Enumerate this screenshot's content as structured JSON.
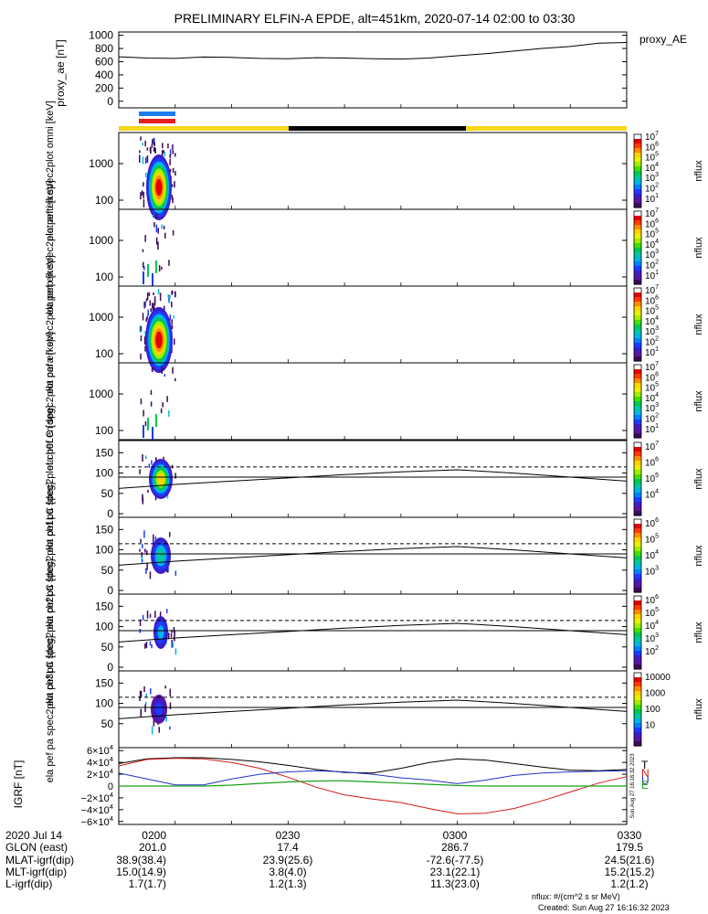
{
  "title": "PRELIMINARY ELFIN-A EPDE, alt=451km, 2020-07-14 02:00 to 03:30",
  "colors": {
    "bar_blue": "#1e7cf0",
    "bar_red": "#e4201b",
    "bar_yellow": "#f7d718",
    "bar_black": "#000000",
    "grf_total": "#000000",
    "grf_north": "#d21a16",
    "grf_up": "#1f33c8",
    "grf_east": "#18a018"
  },
  "panels": {
    "proxy_ae": {
      "ylabel": "proxy_ae [nT]",
      "legend": "proxy_AE",
      "yticks": [
        "1000",
        "800",
        "600",
        "400",
        "200",
        "0"
      ]
    },
    "omni": {
      "ylabel": "ela pef en spec2plot omni [keV]",
      "yticks": [
        "1000",
        "100"
      ],
      "cbar_ticks": [
        "10^7",
        "10^6",
        "10^5",
        "10^4",
        "10^3",
        "10^2",
        "10^1"
      ],
      "cbar_label": "nflux"
    },
    "anti": {
      "ylabel": "ela pef en spec2plot anti [keV]",
      "yticks": [
        "1000",
        "100"
      ],
      "cbar_ticks": [
        "10^7",
        "10^6",
        "10^5",
        "10^4",
        "10^3",
        "10^2",
        "10^1"
      ],
      "cbar_label": "nflux"
    },
    "perp": {
      "ylabel": "ela pef en spec2plot perp [keV]",
      "yticks": [
        "1000",
        "100"
      ],
      "cbar_ticks": [
        "10^7",
        "10^6",
        "10^5",
        "10^4",
        "10^3",
        "10^2",
        "10^1"
      ],
      "cbar_label": "nflux"
    },
    "para": {
      "ylabel": "ela pef en spec2plot para [keV]",
      "yticks": [
        "1000",
        "100"
      ],
      "cbar_ticks": [
        "10^7",
        "10^6",
        "10^5",
        "10^4",
        "10^3",
        "10^2",
        "10^1"
      ],
      "cbar_label": "nflux"
    },
    "ch0LC": {
      "ylabel": "ela pef pa spec2plot ch0LC [deg]",
      "yticks": [
        "150",
        "100",
        "50",
        "0"
      ],
      "cbar_ticks": [
        "10^7",
        "10^6",
        "10^5",
        "10^4"
      ],
      "cbar_label": "nflux"
    },
    "ch1LC": {
      "ylabel": "ela pef pa spec2plot ch1LC [deg]",
      "yticks": [
        "150",
        "100",
        "50",
        "0"
      ],
      "cbar_ticks": [
        "10^6",
        "10^5",
        "10^4",
        "10^3"
      ],
      "cbar_label": "nflux"
    },
    "ch2LC": {
      "ylabel": "ela pef pa spec2plot ch2LC [deg]",
      "yticks": [
        "150",
        "100",
        "50",
        "0"
      ],
      "cbar_ticks": [
        "10^6",
        "10^5",
        "10^4",
        "10^3",
        "10^2"
      ],
      "cbar_label": "nflux"
    },
    "ch3LC": {
      "ylabel": "ela pef pa spec2plot ch3LC [deg]",
      "yticks": [
        "150",
        "100",
        "50"
      ],
      "cbar_ticks": [
        "10000",
        "1000",
        "100",
        "10"
      ],
      "cbar_label": "nflux"
    },
    "igrf": {
      "ylabel": "IGRF [nT]",
      "yticks": [
        "6×10^4",
        "4×10^4",
        "2×10^4",
        "0",
        "−2×10^4",
        "−4×10^4",
        "−6×10^4"
      ],
      "legend": [
        "T",
        "N",
        "U",
        "E"
      ],
      "side_stamp": "Sun Aug 27 16:16:32 2023"
    }
  },
  "chart_data": [
    {
      "type": "line",
      "title": "PRELIMINARY ELFIN-A EPDE, alt=451km, 2020-07-14 02:00 to 03:30",
      "ylabel": "proxy_ae [nT]",
      "ylim": [
        -100,
        1050
      ],
      "x": [
        "02:00",
        "02:05",
        "02:10",
        "02:15",
        "02:20",
        "02:25",
        "02:30",
        "02:35",
        "02:40",
        "02:45",
        "02:50",
        "02:55",
        "03:00",
        "03:05",
        "03:10",
        "03:15",
        "03:20",
        "03:25",
        "03:30"
      ],
      "series": [
        {
          "name": "proxy_AE",
          "values": [
            675,
            655,
            650,
            670,
            665,
            650,
            645,
            660,
            655,
            645,
            640,
            655,
            690,
            720,
            760,
            800,
            830,
            880,
            890
          ]
        }
      ]
    },
    {
      "type": "heatmap",
      "ylabel": "ela pef pa spec2plot ch0LC [deg]",
      "ylim": [
        0,
        180
      ],
      "reference_lines": {
        "x": [
          "02:00",
          "02:10",
          "02:20",
          "02:30",
          "02:40",
          "02:50",
          "03:00",
          "03:10",
          "03:20",
          "03:30"
        ],
        "loss_cone": [
          62,
          72,
          80,
          88,
          96,
          103,
          108,
          100,
          90,
          80
        ],
        "antiloss_cone": [
          115,
          115,
          115,
          115,
          115,
          115,
          115,
          115,
          115,
          115
        ],
        "ninety": 90
      }
    },
    {
      "type": "line",
      "ylabel": "IGRF [nT]",
      "ylim": [
        -65000,
        65000
      ],
      "x": [
        "02:00",
        "02:05",
        "02:10",
        "02:15",
        "02:20",
        "02:25",
        "02:30",
        "02:35",
        "02:40",
        "02:45",
        "02:50",
        "02:55",
        "03:00",
        "03:05",
        "03:10",
        "03:15",
        "03:20",
        "03:25",
        "03:30"
      ],
      "series": [
        {
          "name": "T",
          "values": [
            38000,
            46000,
            48000,
            48000,
            45000,
            41000,
            35000,
            28000,
            23000,
            22000,
            30000,
            40000,
            46000,
            44000,
            38000,
            32000,
            27000,
            26000,
            28000
          ]
        },
        {
          "name": "N",
          "values": [
            34000,
            45000,
            47000,
            46000,
            40000,
            30000,
            15000,
            -2000,
            -15000,
            -22000,
            -28000,
            -38000,
            -47000,
            -46000,
            -38000,
            -25000,
            -10000,
            5000,
            16000
          ]
        },
        {
          "name": "U",
          "values": [
            22000,
            12000,
            2000,
            2000,
            12000,
            20000,
            24000,
            26000,
            24000,
            20000,
            14000,
            10000,
            4000,
            10000,
            18000,
            22000,
            24000,
            25000,
            26000
          ]
        },
        {
          "name": "E",
          "values": [
            0,
            0,
            0,
            0,
            1500,
            4500,
            7000,
            8500,
            9000,
            7000,
            5000,
            3000,
            1000,
            0,
            0,
            0,
            0,
            0,
            0
          ]
        }
      ]
    }
  ],
  "xtable": {
    "headers": [
      "2020 Jul 14",
      "GLON (east)",
      "MLAT-igrf(dip)",
      "MLT-igrf(dip)",
      "L-igrf(dip)"
    ],
    "cols": [
      [
        "0200",
        "201.0",
        "38.9(38.4)",
        "15.0(14.9)",
        "1.7(1.7)"
      ],
      [
        "0230",
        "17.4",
        "23.9(25.6)",
        "3.8(4.0)",
        "1.2(1.3)"
      ],
      [
        "0300",
        "286.7",
        "-72.6(-77.5)",
        "23.1(22.1)",
        "11.3(23.0)"
      ],
      [
        "0330",
        "179.5",
        "24.5(21.6)",
        "15.2(15.2)",
        "1.2(1.2)"
      ]
    ]
  },
  "footer": {
    "units": "nflux: #/(cm^2 s sr MeV)",
    "created": "Created: Sun Aug 27 16:16:32 2023"
  }
}
